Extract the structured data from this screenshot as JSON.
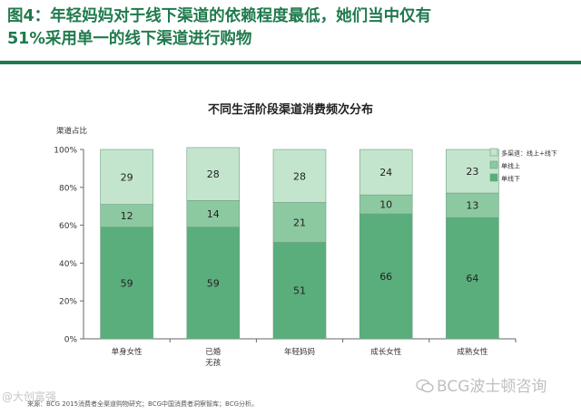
{
  "header": {
    "title_line1": "图4：年轻妈妈对于线下渠道的依赖程度最低，她们当中仅有",
    "title_line2": "51%采用单一的线下渠道进行购物"
  },
  "chart_data": {
    "type": "bar",
    "stacked": true,
    "title": "不同生活阶段渠道消费频次分布",
    "ylabel": "渠道占比",
    "ylim": [
      0,
      100
    ],
    "yticks": [
      "0%",
      "20%",
      "40%",
      "60%",
      "80%",
      "100%"
    ],
    "categories": [
      "单身女性",
      "已婚\n无孩",
      "年轻妈妈",
      "成长女性",
      "成熟女性"
    ],
    "series": [
      {
        "name": "单线下",
        "color": "#5aae7c",
        "values": [
          59,
          59,
          51,
          66,
          64
        ]
      },
      {
        "name": "单线上",
        "color": "#8cc9a1",
        "values": [
          12,
          14,
          21,
          10,
          13
        ]
      },
      {
        "name": "多渠道：线上+线下",
        "color": "#c4e5cd",
        "values": [
          29,
          28,
          28,
          24,
          23
        ]
      }
    ],
    "legend_order": [
      2,
      1,
      0
    ],
    "legend_position": "right"
  },
  "footer": {
    "source": "来源：BCG 2015消费者全渠道购物研究；BCG中国消费者洞察智库；BCG分析。",
    "watermark_left": "@大创富强",
    "watermark_right": "BCG波士顿咨询"
  }
}
